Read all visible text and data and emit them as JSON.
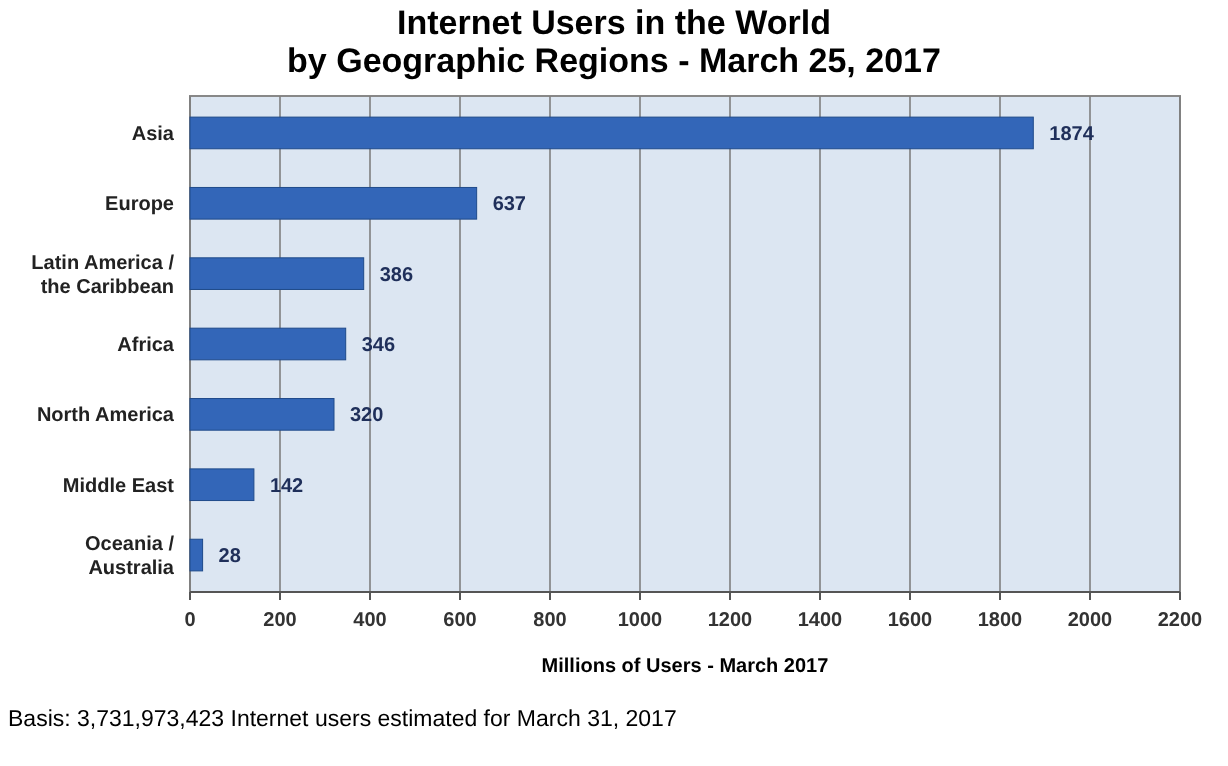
{
  "chart_data": {
    "type": "bar",
    "orientation": "horizontal",
    "title": "Internet Users in the World\nby Geographic Regions - March 25, 2017",
    "xlabel": "Millions of Users - March 2017",
    "categories": [
      "Asia",
      "Europe",
      "Latin America /\nthe Caribbean",
      "Africa",
      "North America",
      "Middle East",
      "Oceania  /\nAustralia"
    ],
    "values": [
      1874,
      637,
      386,
      346,
      320,
      142,
      28
    ],
    "color": "#3366b8",
    "data_labels": true,
    "xlim": [
      0,
      2200
    ],
    "xticks": [
      0,
      200,
      400,
      600,
      800,
      1000,
      1200,
      1400,
      1600,
      1800,
      2000,
      2200
    ],
    "grid": "x",
    "annotations": [
      "Basis: 3,731,973,423 Internet users estimated for March 31, 2017"
    ]
  }
}
